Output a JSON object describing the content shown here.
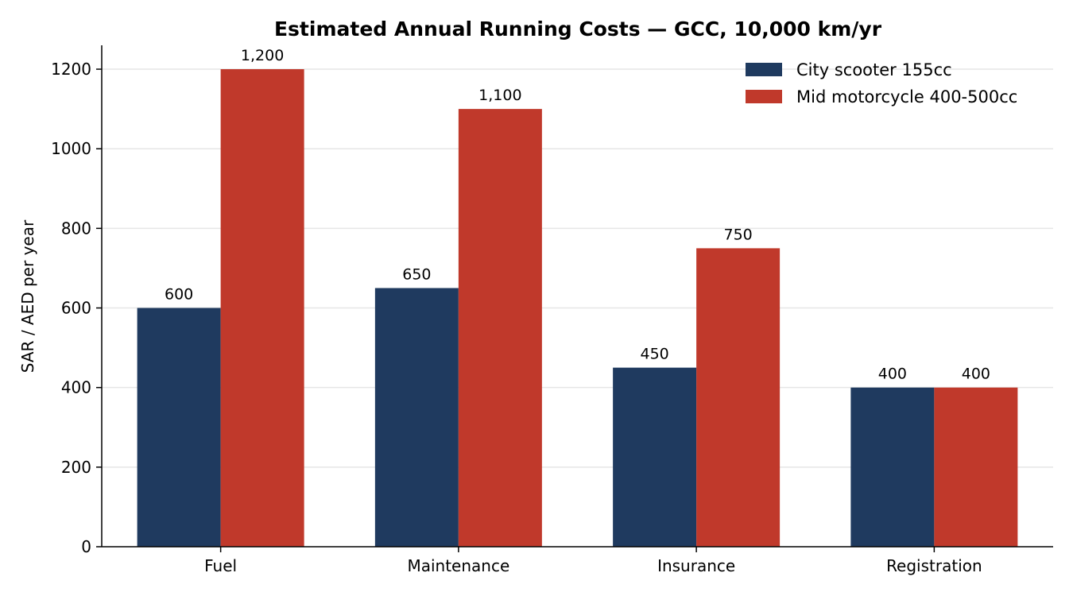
{
  "chart_data": {
    "type": "bar",
    "title": "Estimated Annual Running Costs — GCC, 10,000 km/yr",
    "xlabel": "",
    "ylabel": "SAR / AED per year",
    "categories": [
      "Fuel",
      "Maintenance",
      "Insurance",
      "Registration"
    ],
    "series": [
      {
        "name": "City scooter 155cc",
        "color": "#1f3a5f",
        "values": [
          600,
          650,
          450,
          400
        ],
        "labels": [
          "600",
          "650",
          "450",
          "400"
        ]
      },
      {
        "name": "Mid motorcycle 400-500cc",
        "color": "#c0392b",
        "values": [
          1200,
          1100,
          750,
          400
        ],
        "labels": [
          "1,200",
          "1,100",
          "750",
          "400"
        ]
      }
    ],
    "ylim": [
      0,
      1260
    ],
    "yticks": [
      0,
      200,
      400,
      600,
      800,
      1000,
      1200
    ],
    "grid": "y",
    "legend_position": "top-right"
  }
}
